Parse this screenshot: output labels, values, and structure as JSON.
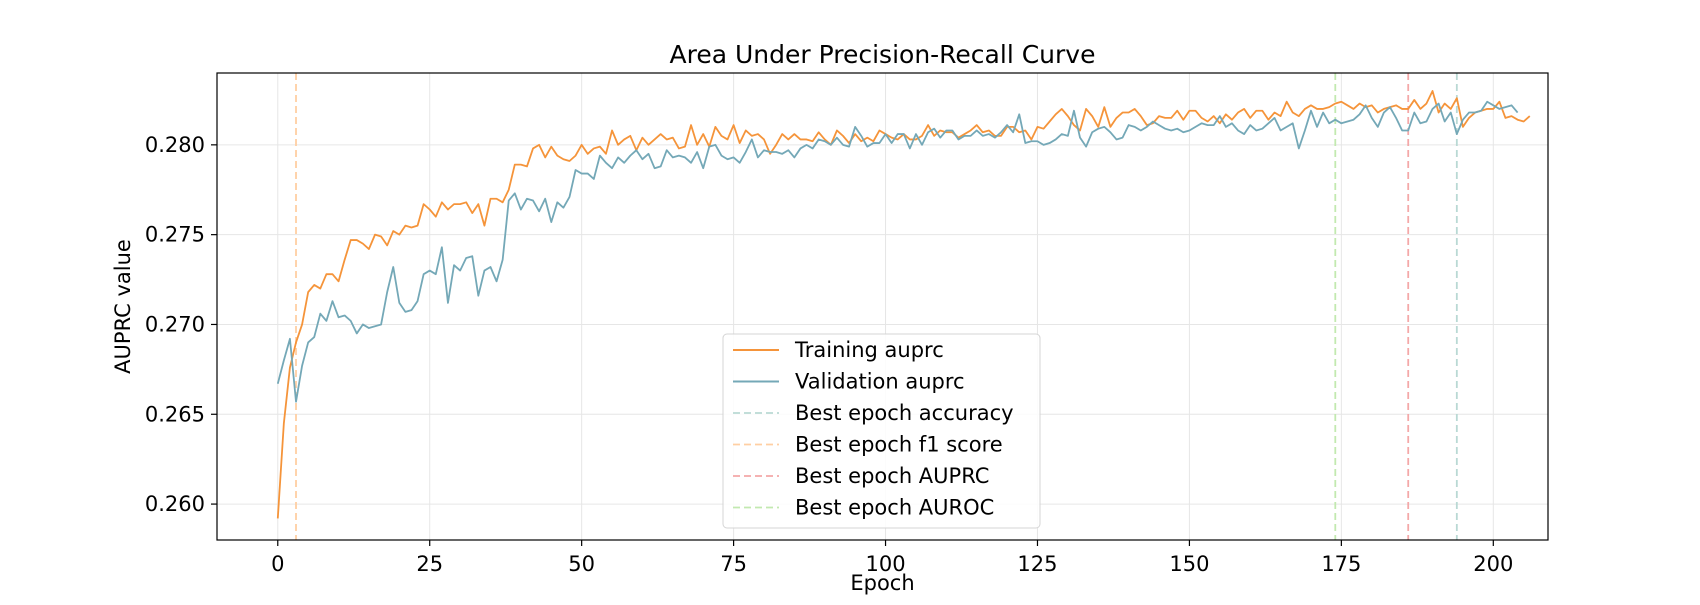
{
  "chart_data": {
    "type": "line",
    "title": "Area Under Precision-Recall Curve",
    "xlabel": "Epoch",
    "ylabel": "AUPRC value",
    "xlim": [
      -10,
      209
    ],
    "ylim": [
      0.258,
      0.284
    ],
    "xticks": [
      0,
      25,
      50,
      75,
      100,
      125,
      150,
      175,
      200
    ],
    "yticks": [
      0.26,
      0.265,
      0.27,
      0.275,
      0.28
    ],
    "ytick_labels": [
      "0.260",
      "0.265",
      "0.270",
      "0.275",
      "0.280"
    ],
    "grid": true,
    "legend_position": "lower center",
    "series": [
      {
        "name": "Training auprc",
        "color": "#f5943a",
        "x_start": 0,
        "values": [
          0.2592,
          0.2645,
          0.2676,
          0.269,
          0.27,
          0.2718,
          0.2722,
          0.272,
          0.2728,
          0.2728,
          0.2724,
          0.2736,
          0.2747,
          0.2747,
          0.2745,
          0.2742,
          0.275,
          0.2749,
          0.2744,
          0.2752,
          0.275,
          0.2755,
          0.2754,
          0.2755,
          0.2767,
          0.2764,
          0.276,
          0.2768,
          0.2764,
          0.2767,
          0.2767,
          0.2768,
          0.2762,
          0.2767,
          0.2755,
          0.277,
          0.277,
          0.2768,
          0.2775,
          0.2789,
          0.2789,
          0.2788,
          0.2798,
          0.28,
          0.2793,
          0.2799,
          0.2794,
          0.2792,
          0.2791,
          0.2794,
          0.28,
          0.2795,
          0.2798,
          0.2799,
          0.2795,
          0.2808,
          0.28,
          0.2803,
          0.2805,
          0.2797,
          0.2804,
          0.28,
          0.2803,
          0.2806,
          0.2803,
          0.2804,
          0.2798,
          0.2799,
          0.2811,
          0.28,
          0.2806,
          0.2799,
          0.281,
          0.2805,
          0.2803,
          0.2811,
          0.2801,
          0.2808,
          0.2805,
          0.2806,
          0.2803,
          0.2795,
          0.28,
          0.2806,
          0.2803,
          0.2806,
          0.2803,
          0.2803,
          0.2802,
          0.2807,
          0.2803,
          0.28,
          0.2808,
          0.2805,
          0.2801,
          0.2806,
          0.2802,
          0.2804,
          0.2802,
          0.2808,
          0.2806,
          0.2804,
          0.2803,
          0.2806,
          0.2803,
          0.2803,
          0.2805,
          0.2811,
          0.2805,
          0.2808,
          0.2807,
          0.2807,
          0.2804,
          0.2806,
          0.2808,
          0.2811,
          0.2807,
          0.2808,
          0.2805,
          0.2805,
          0.281,
          0.281,
          0.2807,
          0.2808,
          0.2803,
          0.281,
          0.2809,
          0.2813,
          0.2817,
          0.282,
          0.2816,
          0.2811,
          0.2808,
          0.282,
          0.2816,
          0.281,
          0.2821,
          0.281,
          0.2815,
          0.2818,
          0.2818,
          0.282,
          0.2816,
          0.2811,
          0.2812,
          0.2816,
          0.2815,
          0.2815,
          0.2819,
          0.2814,
          0.2819,
          0.2819,
          0.2815,
          0.2813,
          0.2816,
          0.2812,
          0.2817,
          0.2814,
          0.2818,
          0.282,
          0.2815,
          0.2819,
          0.2819,
          0.2814,
          0.2818,
          0.2816,
          0.2824,
          0.2818,
          0.2816,
          0.282,
          0.2822,
          0.282,
          0.282,
          0.2821,
          0.2823,
          0.2824,
          0.2822,
          0.282,
          0.2823,
          0.2821,
          0.2822,
          0.2818,
          0.282,
          0.2821,
          0.2822,
          0.282,
          0.282,
          0.2825,
          0.282,
          0.2823,
          0.283,
          0.2818,
          0.2823,
          0.282,
          0.2826,
          0.281,
          0.2815,
          0.2818,
          0.2819,
          0.282,
          0.282,
          0.2824,
          0.2815,
          0.2816,
          0.2814,
          0.2813,
          0.2816
        ]
      },
      {
        "name": "Validation auprc",
        "color": "#74a8b7",
        "x_start": 0,
        "values": [
          0.2667,
          0.268,
          0.2692,
          0.2657,
          0.2677,
          0.269,
          0.2693,
          0.2706,
          0.2702,
          0.2713,
          0.2704,
          0.2705,
          0.2702,
          0.2695,
          0.27,
          0.2698,
          0.2699,
          0.27,
          0.2718,
          0.2732,
          0.2712,
          0.2707,
          0.2708,
          0.2713,
          0.2728,
          0.273,
          0.2728,
          0.2743,
          0.2712,
          0.2733,
          0.273,
          0.2737,
          0.2738,
          0.2716,
          0.273,
          0.2732,
          0.2724,
          0.2736,
          0.2769,
          0.2773,
          0.2764,
          0.277,
          0.2769,
          0.2763,
          0.277,
          0.2757,
          0.2768,
          0.2765,
          0.2771,
          0.2786,
          0.2784,
          0.2784,
          0.2781,
          0.2794,
          0.279,
          0.2787,
          0.2793,
          0.279,
          0.2794,
          0.2797,
          0.2792,
          0.2795,
          0.2787,
          0.2788,
          0.2797,
          0.2793,
          0.2794,
          0.2793,
          0.279,
          0.2796,
          0.2787,
          0.2799,
          0.28,
          0.2794,
          0.2792,
          0.2793,
          0.279,
          0.2796,
          0.2803,
          0.2793,
          0.2797,
          0.2796,
          0.2796,
          0.2795,
          0.2797,
          0.2793,
          0.2798,
          0.28,
          0.2798,
          0.2803,
          0.2802,
          0.28,
          0.2804,
          0.28,
          0.2799,
          0.281,
          0.2805,
          0.2799,
          0.2801,
          0.2801,
          0.2806,
          0.2801,
          0.2806,
          0.2806,
          0.2798,
          0.2806,
          0.28,
          0.2807,
          0.2809,
          0.2804,
          0.2808,
          0.2808,
          0.2803,
          0.2805,
          0.2805,
          0.2808,
          0.2805,
          0.2806,
          0.2804,
          0.2807,
          0.2811,
          0.2807,
          0.2817,
          0.2801,
          0.2802,
          0.2802,
          0.28,
          0.2801,
          0.2803,
          0.2806,
          0.2805,
          0.2819,
          0.2804,
          0.2799,
          0.2807,
          0.2809,
          0.281,
          0.2807,
          0.2803,
          0.2804,
          0.2811,
          0.281,
          0.2808,
          0.281,
          0.2813,
          0.2811,
          0.2809,
          0.2808,
          0.2809,
          0.2807,
          0.2808,
          0.281,
          0.2812,
          0.2811,
          0.2811,
          0.2816,
          0.281,
          0.2812,
          0.2808,
          0.2806,
          0.2811,
          0.2808,
          0.2809,
          0.2812,
          0.2815,
          0.2808,
          0.281,
          0.2812,
          0.2798,
          0.2808,
          0.2819,
          0.281,
          0.2818,
          0.2812,
          0.2814,
          0.2812,
          0.2813,
          0.2814,
          0.2817,
          0.2822,
          0.2815,
          0.281,
          0.2818,
          0.2821,
          0.2815,
          0.2808,
          0.2808,
          0.2818,
          0.2812,
          0.2813,
          0.282,
          0.2823,
          0.2813,
          0.2818,
          0.2806,
          0.2814,
          0.2818,
          0.2818,
          0.2819,
          0.2824,
          0.2822,
          0.282,
          0.2821,
          0.2822,
          0.2818
        ]
      }
    ],
    "vlines": [
      {
        "name": "Best epoch accuracy",
        "x": 194,
        "color": "#b9d9d4"
      },
      {
        "name": "Best epoch f1 score",
        "x": 3,
        "color": "#ffcfa3"
      },
      {
        "name": "Best epoch AUPRC",
        "x": 186,
        "color": "#f4a8a8"
      },
      {
        "name": "Best epoch AUROC",
        "x": 174,
        "color": "#c2e9b0"
      }
    ]
  }
}
